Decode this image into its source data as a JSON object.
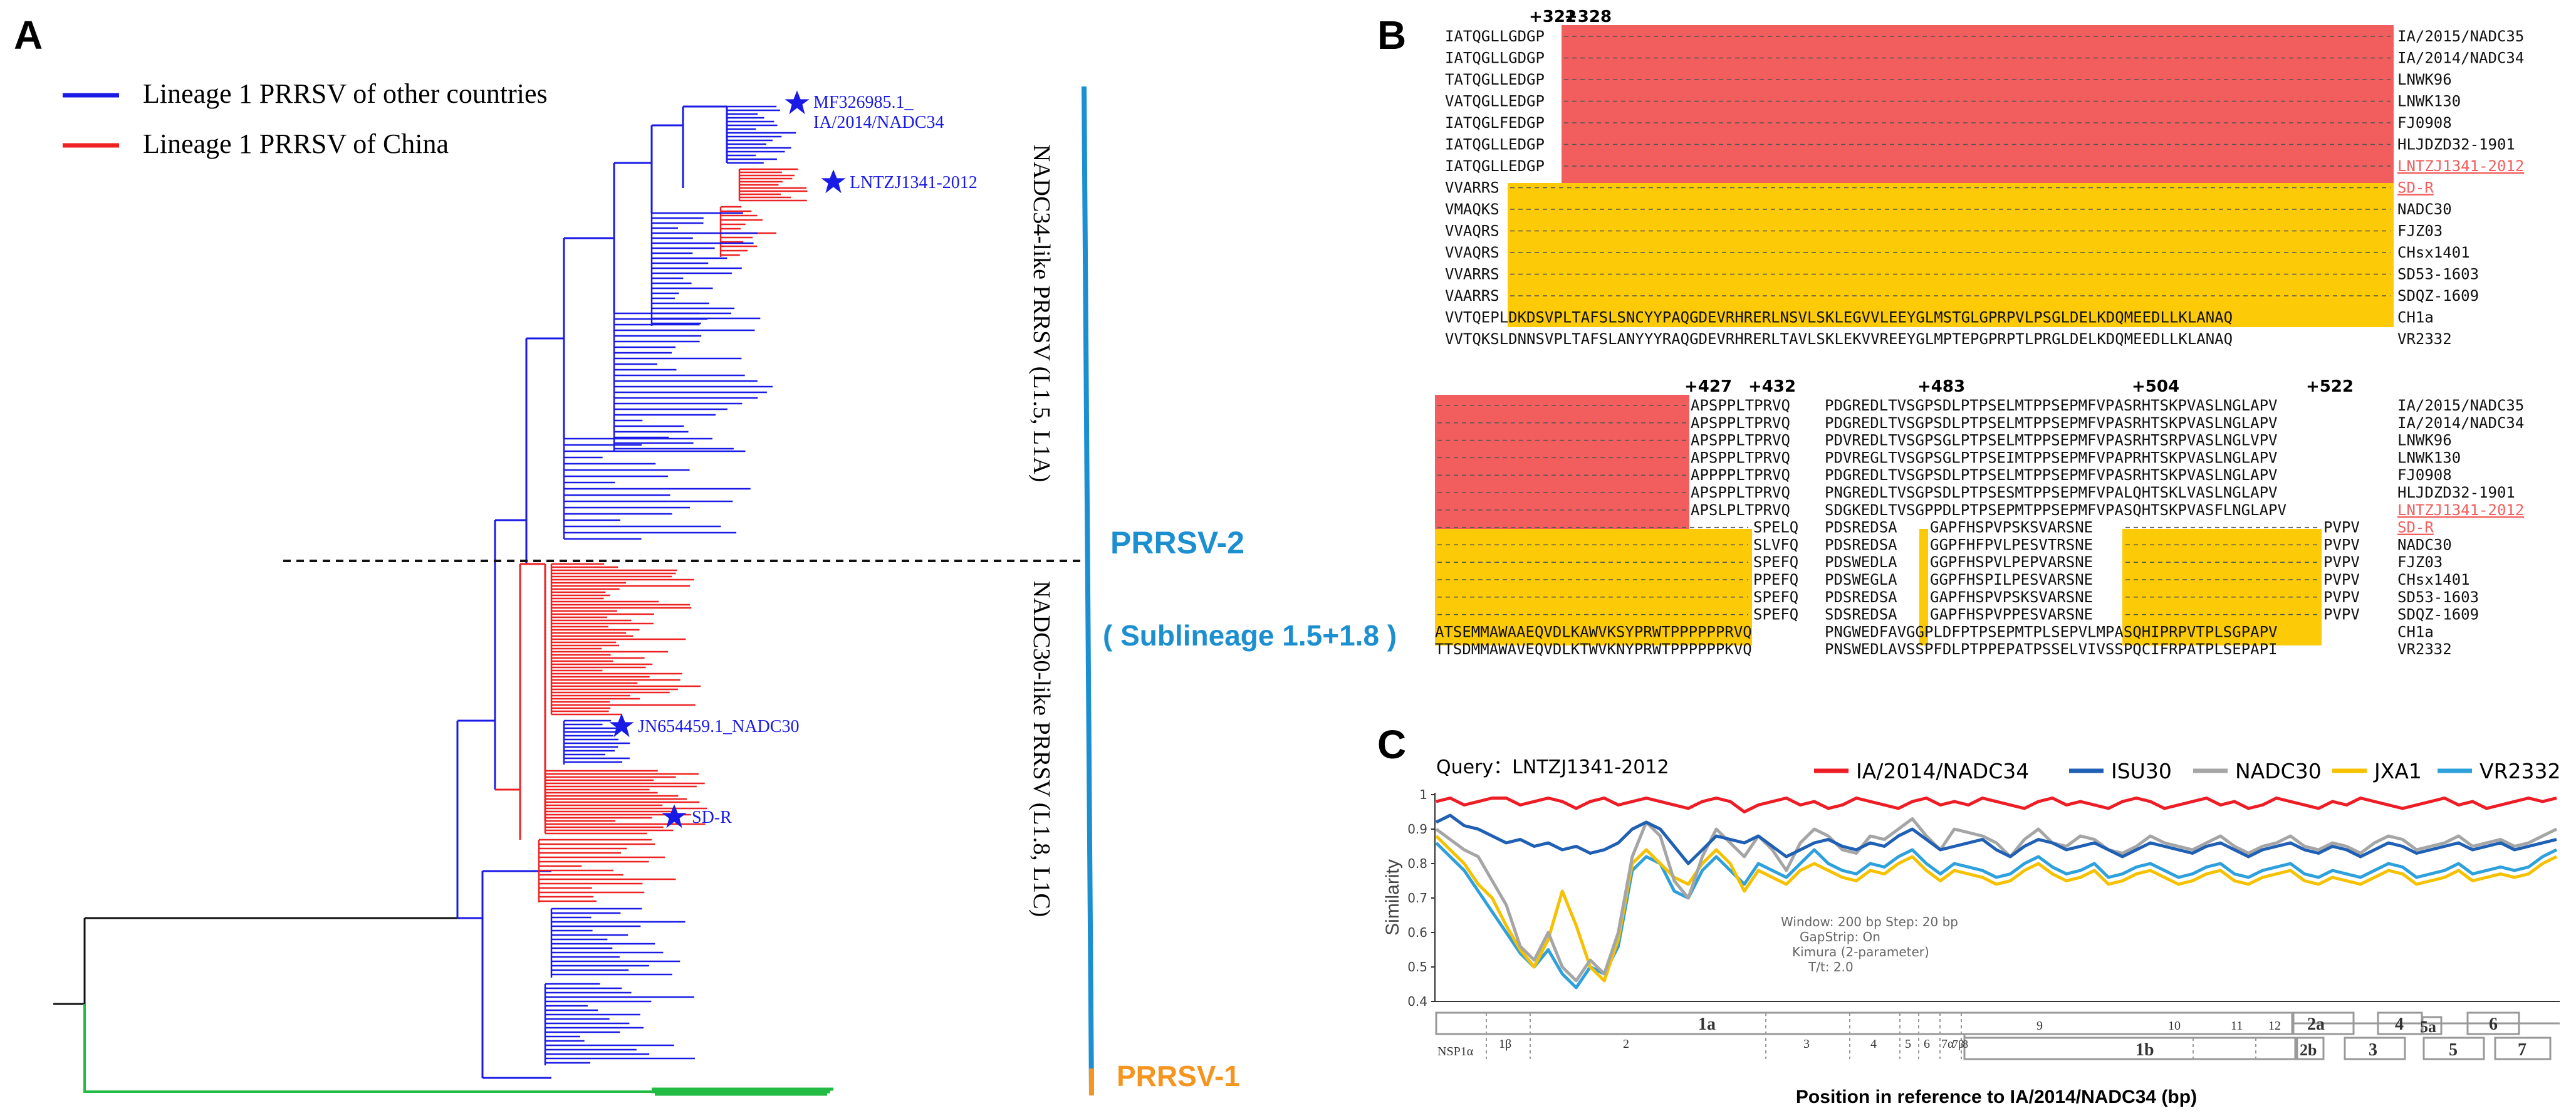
{
  "panels": {
    "a": {
      "letter": "A",
      "legend": [
        {
          "label": "Lineage 1 PRRSV of other countries",
          "color": "#1a1ae6"
        },
        {
          "label": "Lineage 1 PRRSV of China",
          "color": "#ee2222"
        }
      ],
      "tip_labels": {
        "mf_line1": "MF326985.1_",
        "mf_line2": "IA/2014/NADC34",
        "lntzj": "LNTZJ1341-2012",
        "jn": "JN654459.1_NADC30",
        "sdr": "SD-R"
      },
      "clade_upper": "NADC34-like PRRSV (L1.5, L1A)",
      "clade_lower": "NADC30-like PRRSV (L1.8, L1C)",
      "prrsv2": "PRRSV-2",
      "sublineage": "( Sublineage 1.5+1.8 )",
      "prrsv1": "PRRSV-1",
      "colors": {
        "blue": "#1a1ae6",
        "red": "#ee2222",
        "green": "#22bb44",
        "cyan": "#1b8fd0",
        "orange": "#f5941f"
      }
    },
    "b": {
      "letter": "B",
      "top_positions": [
        "+322",
        "+328"
      ],
      "top_rows": [
        {
          "seq": "IATQGLLGDGP",
          "tail": "",
          "label": "IA/2015/NADC35"
        },
        {
          "seq": "IATQGLLGDGP",
          "tail": "",
          "label": "IA/2014/NADC34"
        },
        {
          "seq": "TATQGLLEDGP",
          "tail": "",
          "label": "LNWK96"
        },
        {
          "seq": "VATQGLLEDGP",
          "tail": "",
          "label": "LNWK130"
        },
        {
          "seq": "IATQGLFEDGP",
          "tail": "",
          "label": "FJ0908"
        },
        {
          "seq": "IATQGLLEDGP",
          "tail": "",
          "label": "HLJDZD32-1901"
        },
        {
          "seq": "IATQGLLEDGP",
          "tail": "",
          "label": "LNTZJ1341-2012"
        },
        {
          "seq": "VVARRS",
          "tail": "",
          "label": "SD-R"
        },
        {
          "seq": "VMAQKS",
          "tail": "",
          "label": "NADC30"
        },
        {
          "seq": "VVAQRS",
          "tail": "",
          "label": "FJZ03"
        },
        {
          "seq": "VVAQRS",
          "tail": "",
          "label": "CHsx1401"
        },
        {
          "seq": "VVARRS",
          "tail": "",
          "label": "SD53-1603"
        },
        {
          "seq": "VAARRS",
          "tail": "",
          "label": "SDQZ-1609"
        },
        {
          "seq": "VVTQEPLDKDSVPLTAFSLSNCYYPAQGDEVRHRERLNSVLSKLEGVVLEEYGLMSTGLGPRPVLPSGLDELKDQMEEDLLKLANAQ",
          "tail": "",
          "label": "CH1a"
        },
        {
          "seq": "VVTQKSLDNNSVPLTAFSLANYYYRAQGDEVRHRERLTAVLSKLEKVVREEYGLMPTEPGPRPTLPRGLDELKDQMEEDLLKLANAQ",
          "tail": "",
          "label": "VR2332"
        }
      ],
      "bottom_positions": [
        "+427",
        "+432",
        "+483",
        "+504",
        "+522"
      ],
      "bottom_rows": [
        {
          "c1": "APSPPLTPRVQ",
          "c2": "PDGREDLTVSGPSDLPTPSELMTPPSEPMFVPASRHTSKPVASLNGLAPV",
          "label": "IA/2015/NADC35"
        },
        {
          "c1": "APSPPLTPRVQ",
          "c2": "PDGREDLTVSGPSDLPTPSELMTPPSEPMFVPASRHTSKPVASLNGLAPV",
          "label": "IA/2014/NADC34"
        },
        {
          "c1": "APSPPLTPRVQ",
          "c2": "PDVREDLTVSGPSGLPTPSELMTPPSEPMFVPASRHTSRPVASLNGLVPV",
          "label": "LNWK96"
        },
        {
          "c1": "APSPPLTPRVQ",
          "c2": "PDVREGLTVSGPSGLPTPSEIMTPPSEPMFVPAPRHTSKPVASLNGLAPV",
          "label": "LNWK130"
        },
        {
          "c1": "APPPPLTPRVQ",
          "c2": "PDGREDLTVSGPSDLPTPSELMTPPSEPMFVPASRHTSKPVASLNGLAPV",
          "label": "FJ0908"
        },
        {
          "c1": "APSPPLTPRVQ",
          "c2": "PNGREDLTVSGPSDLPTPSESMTPPSEPMFVPALQHTSKLVASLNGLAPV",
          "label": "HLJDZD32-1901"
        },
        {
          "c1": "APSLPLTPRVQ",
          "c2": "SDGKEDLTVSGPPDLPTPSEPMTPPSEPMFVPASQHTSKPVASFLNGLAPV",
          "label": "LNTZJ1341-2012"
        },
        {
          "c1": "SPELQ",
          "c2": "PDSREDSA",
          "c3": "GAPFHSPVPSKSVARSNE",
          "c4": "PVPV",
          "label": "SD-R"
        },
        {
          "c1": "SLVFQ",
          "c2": "PDSREDSA",
          "c3": "GGPFHFPVLPESVTRSNE",
          "c4": "PVPV",
          "label": "NADC30"
        },
        {
          "c1": "SPEFQ",
          "c2": "PDSWEDLA",
          "c3": "GGPFHSPVLPEPVARSNE",
          "c4": "PVPV",
          "label": "FJZ03"
        },
        {
          "c1": "PPEFQ",
          "c2": "PDSWEGLA",
          "c3": "GGPFHSPILPESVARSNE",
          "c4": "PVPV",
          "label": "CHsx1401"
        },
        {
          "c1": "SPEFQ",
          "c2": "PDSREDSA",
          "c3": "GAPFHSPVPSKSVARSNE",
          "c4": "PVPV",
          "label": "SD53-1603"
        },
        {
          "c1": "SPEFQ",
          "c2": "SDSREDSA",
          "c3": "GAPFHSPVPPESVARSNE",
          "c4": "PVPV",
          "label": "SDQZ-1609"
        },
        {
          "c1": "ATSEMMAWAAEQVDLKAWVKSYPRWTPPPPPPRVQ",
          "c2": "PNGWEDFAVGGPLDFPTPSEPMTPLSEPVLMPASQHIPRPVTPLSGPAPV",
          "label": "CH1a"
        },
        {
          "c1": "TTSDMMAWAVEQVDLKTWVKNYPRWTPPPPPPKVQ",
          "c2": "PNSWEDLAVSSPFDLPTPPEPATPSSELVIVSSPQCIFRPATPLSEPAPI",
          "label": "VR2332"
        }
      ],
      "colors": {
        "red_block": "#f25e5e",
        "yellow_block": "#fcca06",
        "highlight_text": "#f25e5e"
      }
    },
    "c": {
      "letter": "C",
      "query": "Query：LNTZJ1341-2012",
      "ylabel": "Similarity",
      "xlabel": "Position in reference to IA/2014/NADC34 (bp)",
      "yticks": [
        "1",
        "0.9",
        "0.8",
        "0.7",
        "0.6",
        "0.5",
        "0.4"
      ],
      "legend": [
        {
          "name": "IA/2014/NADC34",
          "color": "#ee1c25"
        },
        {
          "name": "ISU30",
          "color": "#1f5fb4"
        },
        {
          "name": "NADC30",
          "color": "#a5a5a5"
        },
        {
          "name": "JXA1",
          "color": "#f5c100"
        },
        {
          "name": "VR2332",
          "color": "#2ea0db"
        }
      ],
      "params": [
        "Window: 200 bp  Step: 20 bp",
        "GapStrip: On",
        "Kimura (2-parameter)",
        "T/t: 2.0"
      ],
      "genome_labels": {
        "1a": "1a",
        "1b": "1b",
        "2a": "2a",
        "2b": "2b",
        "3": "3",
        "4": "4",
        "5a": "5a",
        "5": "5",
        "6": "6",
        "7": "7",
        "nsp1a": "NSP1α",
        "nsp1b": "1β",
        "n2": "2",
        "n3": "3",
        "n4": "4",
        "n5": "5",
        "n6": "6",
        "n7a": "7α",
        "n7b": "7β",
        "n8": "8",
        "n9": "9",
        "n10": "10",
        "n11": "11",
        "n12": "12"
      }
    }
  },
  "chart_data": {
    "type": "line",
    "title": "Query：LNTZJ1341-2012",
    "xlabel": "Position in reference to IA/2014/NADC34 (bp)",
    "ylabel": "Similarity",
    "ylim": [
      0.4,
      1.0
    ],
    "x": [
      0,
      1,
      2,
      3,
      4,
      5,
      6,
      7,
      8,
      9,
      10,
      11,
      12,
      13,
      14,
      15,
      16,
      17,
      18,
      19,
      20,
      21,
      22,
      23,
      24,
      25,
      26,
      27,
      28,
      29,
      30,
      31,
      32,
      33,
      34,
      35,
      36,
      37,
      38,
      39,
      40,
      41,
      42,
      43,
      44,
      45,
      46,
      47,
      48,
      49,
      50,
      51,
      52,
      53,
      54,
      55,
      56,
      57,
      58,
      59,
      60,
      61,
      62,
      63,
      64,
      65,
      66,
      67,
      68,
      69,
      70,
      71,
      72,
      73,
      74,
      75,
      76,
      77,
      78,
      79,
      80
    ],
    "series": [
      {
        "name": "IA/2014/NADC34",
        "values": [
          0.98,
          0.99,
          0.97,
          0.98,
          0.99,
          0.99,
          0.97,
          0.98,
          0.99,
          0.98,
          0.96,
          0.98,
          0.99,
          0.97,
          0.98,
          0.99,
          0.98,
          0.97,
          0.96,
          0.98,
          0.99,
          0.98,
          0.95,
          0.97,
          0.98,
          0.99,
          0.97,
          0.98,
          0.96,
          0.97,
          0.99,
          0.98,
          0.97,
          0.96,
          0.98,
          0.99,
          0.97,
          0.98,
          0.97,
          0.99,
          0.98,
          0.97,
          0.96,
          0.98,
          0.99,
          0.97,
          0.98,
          0.97,
          0.96,
          0.98,
          0.99,
          0.98,
          0.96,
          0.97,
          0.98,
          0.99,
          0.97,
          0.98,
          0.96,
          0.97,
          0.99,
          0.98,
          0.97,
          0.96,
          0.98,
          0.97,
          0.99,
          0.98,
          0.97,
          0.96,
          0.97,
          0.98,
          0.99,
          0.97,
          0.98,
          0.96,
          0.97,
          0.98,
          0.99,
          0.98,
          0.99
        ]
      },
      {
        "name": "ISU30",
        "values": [
          0.92,
          0.94,
          0.91,
          0.9,
          0.88,
          0.86,
          0.87,
          0.85,
          0.86,
          0.84,
          0.85,
          0.83,
          0.84,
          0.86,
          0.9,
          0.92,
          0.9,
          0.85,
          0.8,
          0.84,
          0.88,
          0.87,
          0.86,
          0.88,
          0.85,
          0.82,
          0.84,
          0.86,
          0.87,
          0.85,
          0.84,
          0.86,
          0.85,
          0.88,
          0.9,
          0.87,
          0.84,
          0.85,
          0.86,
          0.87,
          0.84,
          0.82,
          0.85,
          0.87,
          0.86,
          0.84,
          0.85,
          0.86,
          0.84,
          0.82,
          0.84,
          0.86,
          0.85,
          0.84,
          0.83,
          0.85,
          0.86,
          0.84,
          0.82,
          0.84,
          0.85,
          0.86,
          0.84,
          0.83,
          0.85,
          0.84,
          0.82,
          0.84,
          0.86,
          0.85,
          0.83,
          0.84,
          0.85,
          0.86,
          0.84,
          0.85,
          0.86,
          0.84,
          0.85,
          0.86,
          0.87
        ]
      },
      {
        "name": "NADC30",
        "values": [
          0.9,
          0.87,
          0.84,
          0.82,
          0.75,
          0.68,
          0.56,
          0.52,
          0.6,
          0.5,
          0.46,
          0.52,
          0.48,
          0.6,
          0.82,
          0.92,
          0.88,
          0.75,
          0.7,
          0.82,
          0.9,
          0.86,
          0.82,
          0.88,
          0.84,
          0.78,
          0.86,
          0.9,
          0.88,
          0.84,
          0.83,
          0.88,
          0.87,
          0.9,
          0.93,
          0.88,
          0.84,
          0.9,
          0.89,
          0.88,
          0.86,
          0.82,
          0.87,
          0.9,
          0.86,
          0.85,
          0.88,
          0.87,
          0.84,
          0.83,
          0.85,
          0.88,
          0.86,
          0.85,
          0.84,
          0.86,
          0.88,
          0.85,
          0.83,
          0.85,
          0.86,
          0.88,
          0.85,
          0.84,
          0.86,
          0.85,
          0.83,
          0.86,
          0.88,
          0.87,
          0.84,
          0.85,
          0.86,
          0.88,
          0.85,
          0.86,
          0.87,
          0.85,
          0.86,
          0.88,
          0.9
        ]
      },
      {
        "name": "JXA1",
        "values": [
          0.88,
          0.84,
          0.8,
          0.74,
          0.7,
          0.62,
          0.55,
          0.5,
          0.58,
          0.72,
          0.62,
          0.5,
          0.46,
          0.58,
          0.8,
          0.84,
          0.8,
          0.76,
          0.74,
          0.8,
          0.84,
          0.8,
          0.72,
          0.78,
          0.76,
          0.74,
          0.78,
          0.8,
          0.78,
          0.76,
          0.75,
          0.78,
          0.77,
          0.8,
          0.82,
          0.78,
          0.75,
          0.78,
          0.77,
          0.76,
          0.74,
          0.75,
          0.78,
          0.8,
          0.77,
          0.75,
          0.76,
          0.78,
          0.74,
          0.75,
          0.77,
          0.78,
          0.76,
          0.74,
          0.75,
          0.77,
          0.78,
          0.75,
          0.74,
          0.76,
          0.77,
          0.78,
          0.75,
          0.74,
          0.76,
          0.75,
          0.74,
          0.76,
          0.78,
          0.77,
          0.74,
          0.75,
          0.76,
          0.78,
          0.75,
          0.76,
          0.77,
          0.76,
          0.77,
          0.8,
          0.82
        ]
      },
      {
        "name": "VR2332",
        "values": [
          0.86,
          0.82,
          0.78,
          0.72,
          0.66,
          0.6,
          0.54,
          0.5,
          0.55,
          0.48,
          0.44,
          0.5,
          0.48,
          0.56,
          0.78,
          0.82,
          0.8,
          0.72,
          0.7,
          0.78,
          0.82,
          0.78,
          0.74,
          0.8,
          0.78,
          0.76,
          0.8,
          0.84,
          0.8,
          0.78,
          0.77,
          0.8,
          0.79,
          0.82,
          0.84,
          0.8,
          0.77,
          0.8,
          0.79,
          0.78,
          0.76,
          0.77,
          0.8,
          0.82,
          0.79,
          0.77,
          0.78,
          0.8,
          0.76,
          0.77,
          0.79,
          0.8,
          0.78,
          0.76,
          0.77,
          0.79,
          0.8,
          0.77,
          0.76,
          0.78,
          0.79,
          0.8,
          0.77,
          0.76,
          0.78,
          0.77,
          0.76,
          0.78,
          0.8,
          0.79,
          0.76,
          0.77,
          0.78,
          0.8,
          0.77,
          0.78,
          0.79,
          0.78,
          0.79,
          0.82,
          0.84
        ]
      }
    ]
  }
}
